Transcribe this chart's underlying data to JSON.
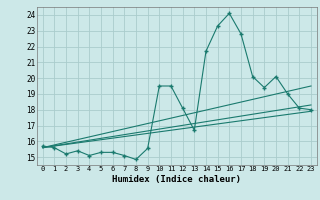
{
  "xlabel": "Humidex (Indice chaleur)",
  "bg_color": "#cce8e8",
  "grid_color": "#aacccc",
  "line_color": "#1a7a6e",
  "xlim": [
    -0.5,
    23.5
  ],
  "ylim": [
    14.5,
    24.5
  ],
  "yticks": [
    15,
    16,
    17,
    18,
    19,
    20,
    21,
    22,
    23,
    24
  ],
  "xticks": [
    0,
    1,
    2,
    3,
    4,
    5,
    6,
    7,
    8,
    9,
    10,
    11,
    12,
    13,
    14,
    15,
    16,
    17,
    18,
    19,
    20,
    21,
    22,
    23
  ],
  "series1_x": [
    0,
    1,
    2,
    3,
    4,
    5,
    6,
    7,
    8,
    9,
    10,
    11,
    12,
    13,
    14,
    15,
    16,
    17,
    18,
    19,
    20,
    21,
    22,
    23
  ],
  "series1_y": [
    15.7,
    15.6,
    15.2,
    15.4,
    15.1,
    15.3,
    15.3,
    15.1,
    14.85,
    15.55,
    19.5,
    19.5,
    18.1,
    16.7,
    21.7,
    23.3,
    24.1,
    22.8,
    20.1,
    19.4,
    20.1,
    19.0,
    18.1,
    18.0
  ],
  "line2_x": [
    0,
    23
  ],
  "line2_y": [
    15.6,
    17.9
  ],
  "line3_x": [
    0,
    23
  ],
  "line3_y": [
    15.6,
    18.3
  ],
  "line4_x": [
    0,
    23
  ],
  "line4_y": [
    15.6,
    19.5
  ]
}
